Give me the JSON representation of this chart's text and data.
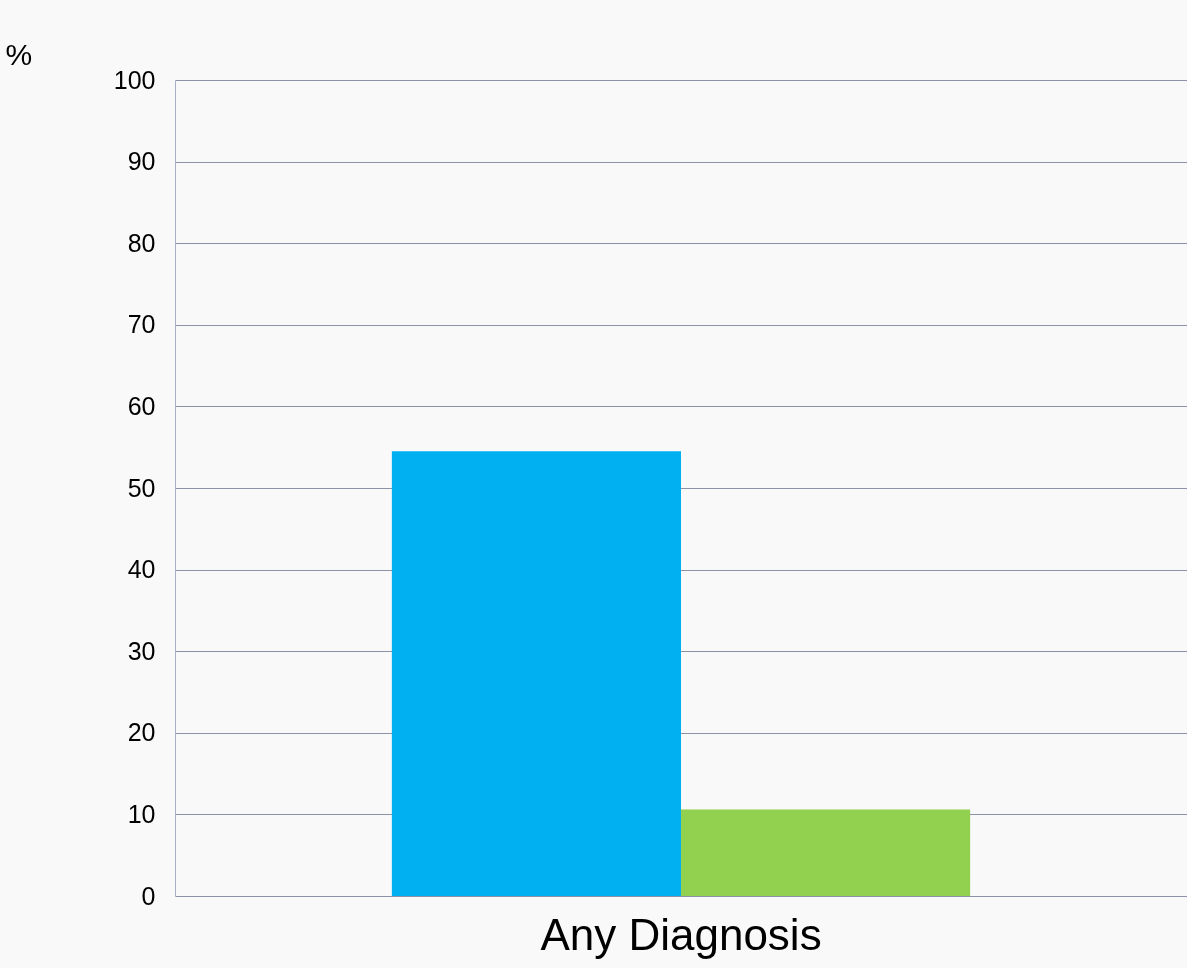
{
  "chart_data": {
    "type": "bar",
    "ylabel": "%",
    "categories": [
      "Any Diagnosis"
    ],
    "series": [
      {
        "color": "#00b0f0",
        "values": [
          54.5
        ]
      },
      {
        "color": "#92d050",
        "values": [
          10.6
        ]
      }
    ],
    "ylim": [
      0,
      100
    ],
    "yticks": [
      0,
      10,
      20,
      30,
      40,
      50,
      60,
      70,
      80,
      90,
      100
    ],
    "grid": "y",
    "legend": false
  }
}
